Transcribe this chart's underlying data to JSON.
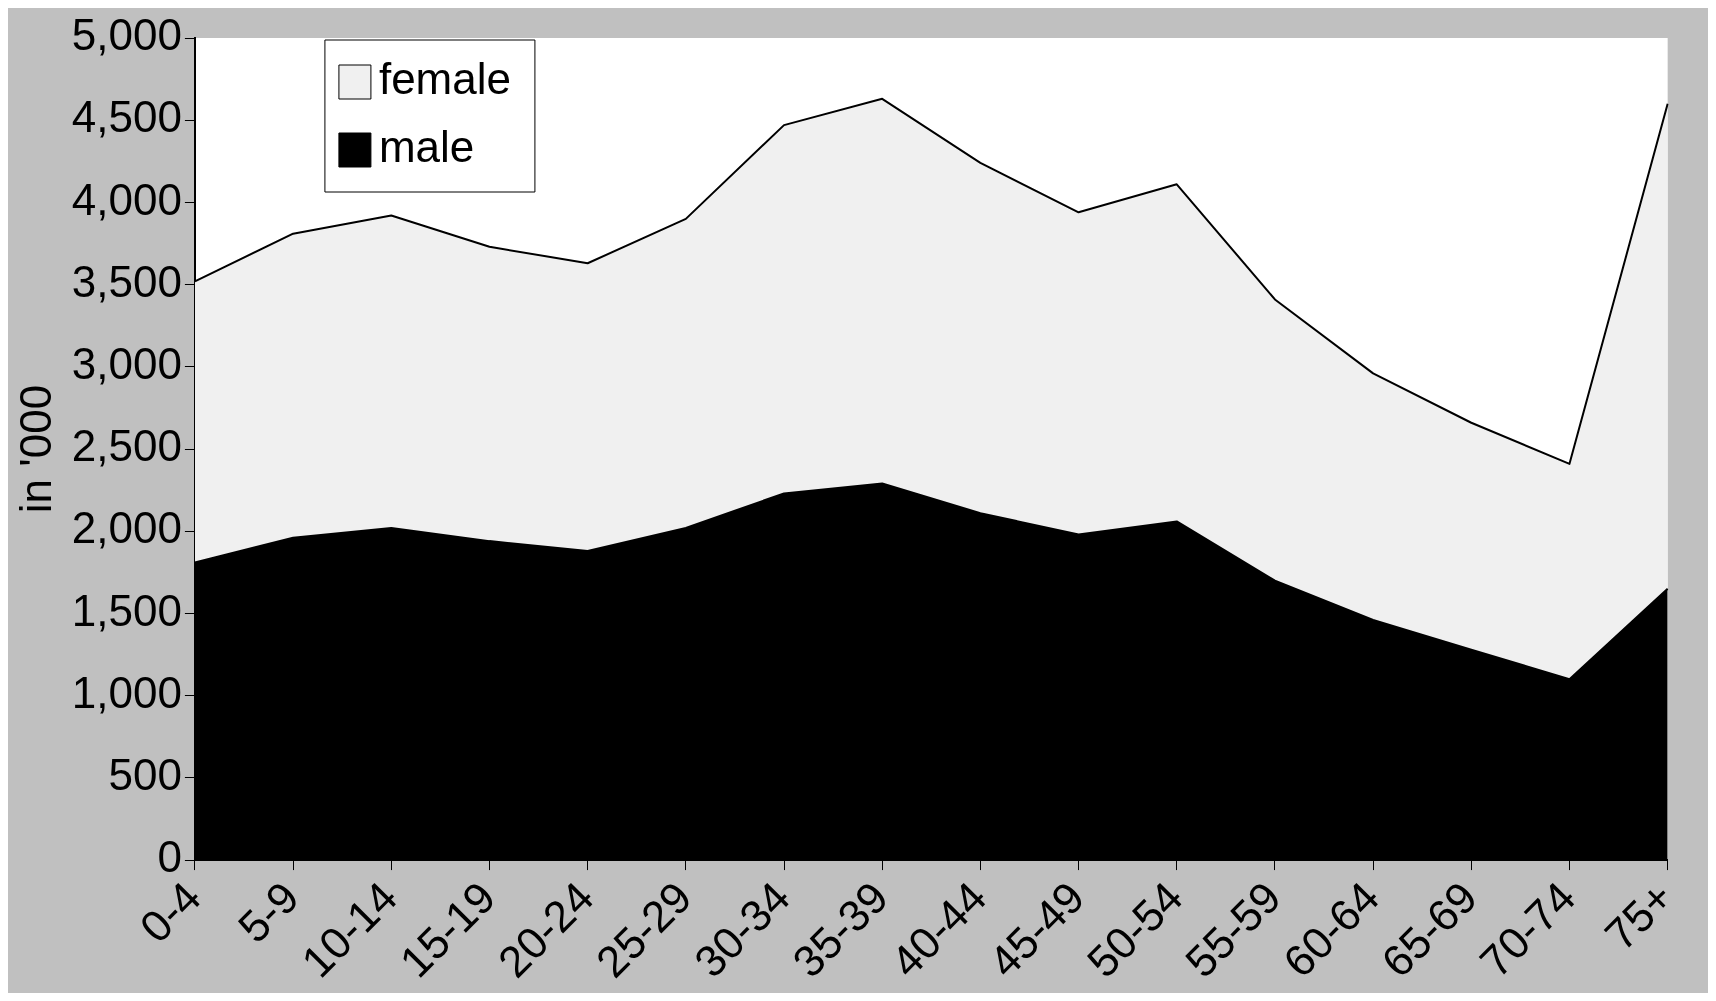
{
  "chart_data": {
    "type": "area",
    "stacked": true,
    "ylabel": "in '000",
    "categories": [
      "0-4",
      "5-9",
      "10-14",
      "15-19",
      "20-24",
      "25-29",
      "30-34",
      "35-39",
      "40-44",
      "45-49",
      "50-54",
      "55-59",
      "60-64",
      "65-69",
      "70-74",
      "75+"
    ],
    "series": [
      {
        "name": "male",
        "color": "#000000",
        "values": [
          1810,
          1960,
          2020,
          1940,
          1880,
          2020,
          2230,
          2290,
          2110,
          1980,
          2060,
          1700,
          1460,
          1280,
          1100,
          1650
        ]
      },
      {
        "name": "female",
        "color": "#f0f0f0",
        "values": [
          1710,
          1850,
          1900,
          1790,
          1750,
          1880,
          2240,
          2340,
          2130,
          1960,
          2050,
          1710,
          1500,
          1380,
          1310,
          2950
        ]
      }
    ],
    "ylim": [
      0,
      5000
    ],
    "yticks": [
      {
        "value": 0,
        "label": "0"
      },
      {
        "value": 500,
        "label": "500"
      },
      {
        "value": 1000,
        "label": "1,000"
      },
      {
        "value": 1500,
        "label": "1,500"
      },
      {
        "value": 2000,
        "label": "2,000"
      },
      {
        "value": 2500,
        "label": "2,500"
      },
      {
        "value": 3000,
        "label": "3,000"
      },
      {
        "value": 3500,
        "label": "3,500"
      },
      {
        "value": 4000,
        "label": "4,000"
      },
      {
        "value": 4500,
        "label": "4,500"
      },
      {
        "value": 5000,
        "label": "5,000"
      }
    ],
    "grid": false,
    "legend": "top left"
  }
}
